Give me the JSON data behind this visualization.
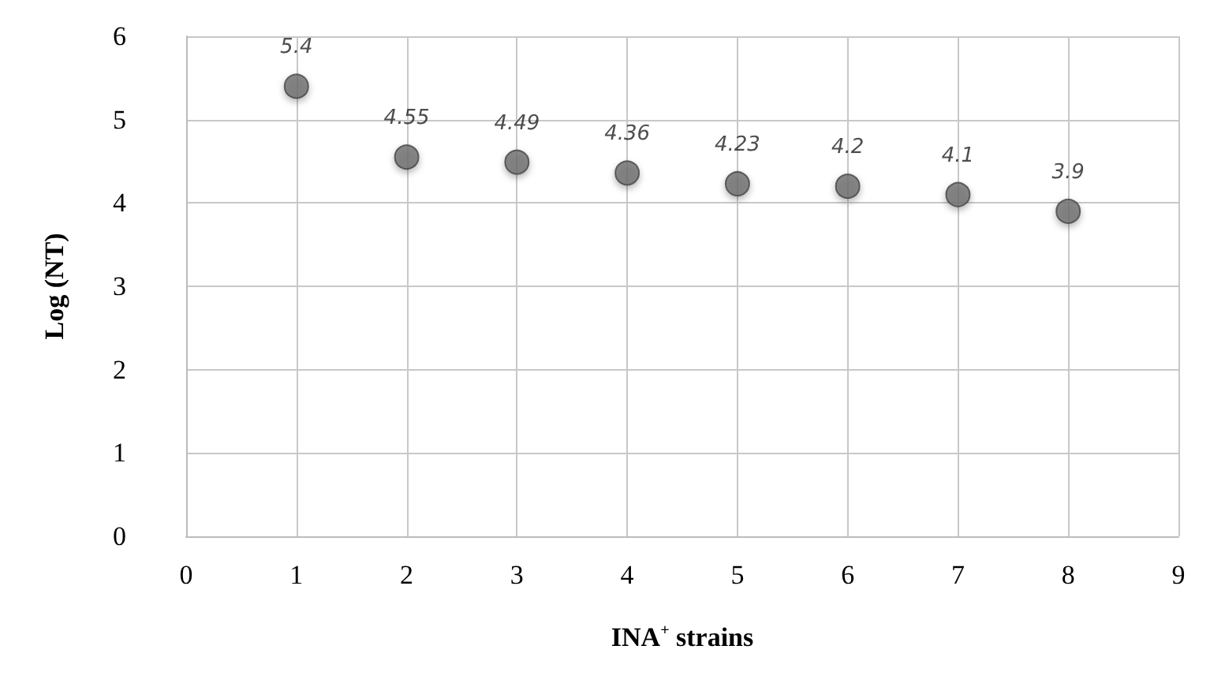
{
  "chart_data": {
    "type": "scatter",
    "xlabel": "INA$^{+}$ strains",
    "ylabel": "Log (NT)",
    "x": [
      1,
      2,
      3,
      4,
      5,
      6,
      7,
      8
    ],
    "series": [
      {
        "color": "#6e6e6e",
        "values": [
          5.4,
          4.55,
          4.49,
          4.36,
          4.23,
          4.2,
          4.1,
          3.9
        ]
      }
    ],
    "xlim": [
      0,
      9
    ],
    "xticks": [
      0,
      1,
      2,
      3,
      4,
      5,
      6,
      7,
      8,
      9
    ],
    "ylim": [
      0,
      6
    ],
    "yticks": [
      0,
      1,
      2,
      3,
      4,
      5,
      6
    ],
    "grid": true,
    "marker": "circle",
    "data_labels": true
  }
}
